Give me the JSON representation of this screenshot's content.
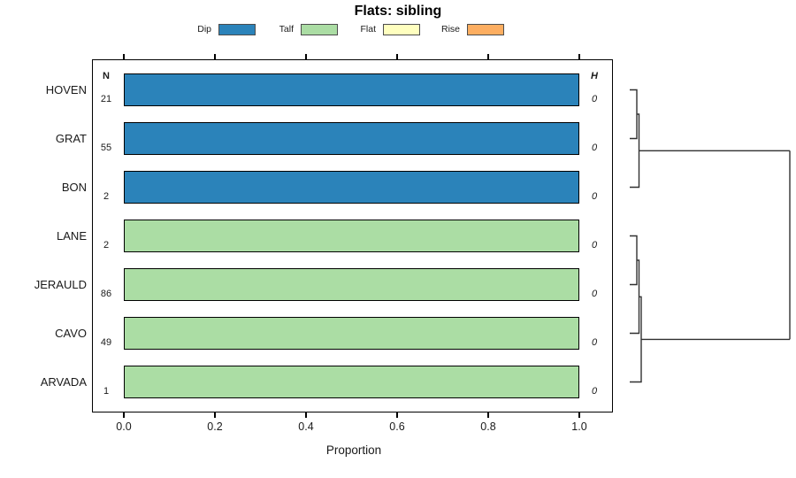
{
  "title": "Flats: sibling",
  "legend": {
    "items": [
      {
        "label": "Dip",
        "color": "#2b83ba"
      },
      {
        "label": "Talf",
        "color": "#abdda4"
      },
      {
        "label": "Flat",
        "color": "#ffffbf"
      },
      {
        "label": "Rise",
        "color": "#fdae61"
      }
    ]
  },
  "columns": {
    "n_header": "N",
    "h_header": "H"
  },
  "rows": [
    {
      "label": "HOVEN",
      "n": "21",
      "h": "0"
    },
    {
      "label": "GRAT",
      "n": "55",
      "h": "0"
    },
    {
      "label": "BON",
      "n": "2",
      "h": "0"
    },
    {
      "label": "LANE",
      "n": "2",
      "h": "0"
    },
    {
      "label": "JERAULD",
      "n": "86",
      "h": "0"
    },
    {
      "label": "CAVO",
      "n": "49",
      "h": "0"
    },
    {
      "label": "ARVADA",
      "n": "1",
      "h": "0"
    }
  ],
  "axis": {
    "ticks": [
      "0.0",
      "0.2",
      "0.4",
      "0.6",
      "0.8",
      "1.0"
    ],
    "label": "Proportion"
  },
  "chart_data": {
    "type": "bar",
    "orientation": "horizontal",
    "title": "Flats: sibling",
    "xlabel": "Proportion",
    "xlim": [
      0,
      1
    ],
    "grid": false,
    "legend_position": "top",
    "categories": [
      "HOVEN",
      "GRAT",
      "BON",
      "LANE",
      "JERAULD",
      "CAVO",
      "ARVADA"
    ],
    "n_values": [
      21,
      55,
      2,
      2,
      86,
      49,
      1
    ],
    "h_values": [
      0,
      0,
      0,
      0,
      0,
      0,
      0
    ],
    "series": [
      {
        "name": "Dip",
        "color": "#2b83ba",
        "values": [
          1,
          1,
          1,
          0,
          0,
          0,
          0
        ]
      },
      {
        "name": "Talf",
        "color": "#abdda4",
        "values": [
          0,
          0,
          0,
          1,
          1,
          1,
          1
        ]
      },
      {
        "name": "Flat",
        "color": "#ffffbf",
        "values": [
          0,
          0,
          0,
          0,
          0,
          0,
          0
        ]
      },
      {
        "name": "Rise",
        "color": "#fdae61",
        "values": [
          0,
          0,
          0,
          0,
          0,
          0,
          0
        ]
      }
    ],
    "dendrogram": {
      "side": "right",
      "merge_heights_label": "H",
      "clusters": [
        [
          "HOVEN",
          "GRAT",
          "BON"
        ],
        [
          "LANE",
          "JERAULD",
          "CAVO",
          "ARVADA"
        ]
      ]
    }
  }
}
